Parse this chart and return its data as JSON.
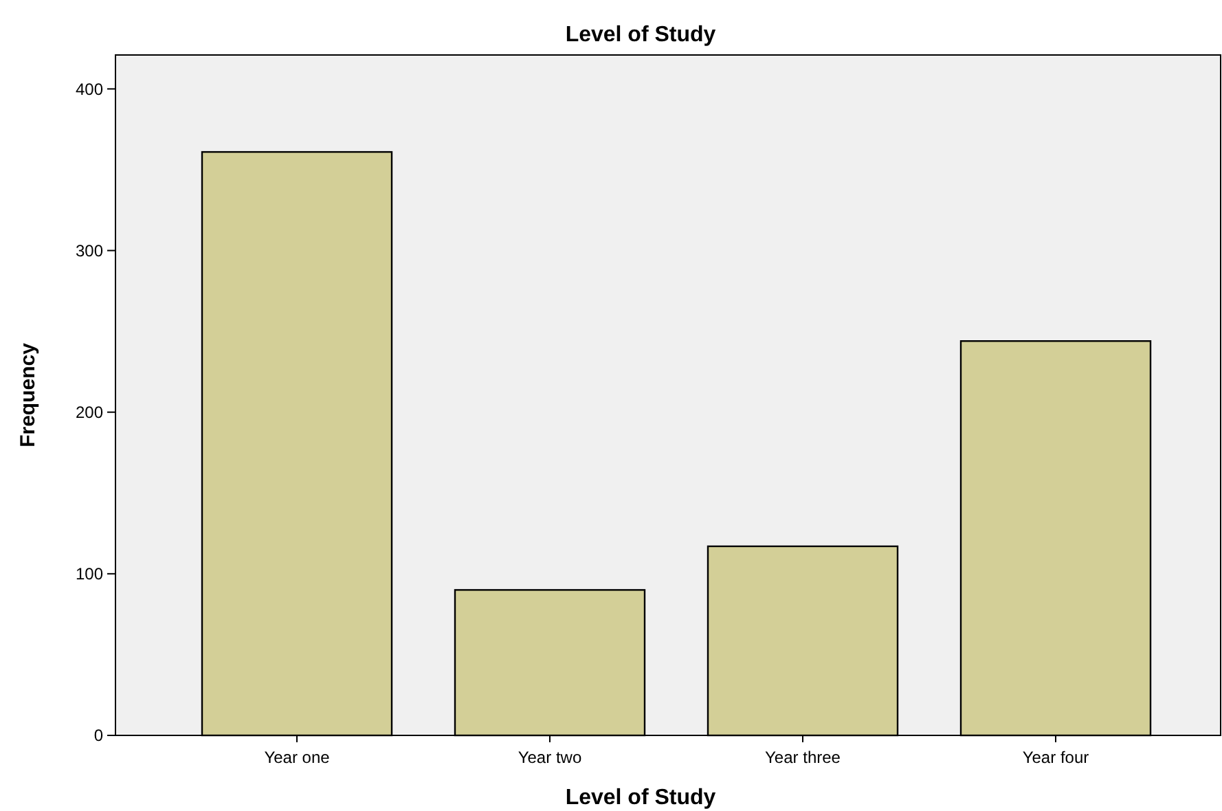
{
  "chart_data": {
    "type": "bar",
    "title": "Level of Study",
    "xlabel": "Level of Study",
    "ylabel": "Frequency",
    "categories": [
      "Year one",
      "Year two",
      "Year three",
      "Year four"
    ],
    "values": [
      361,
      90,
      117,
      244
    ],
    "color": "#d3cf97",
    "ylim": [
      0,
      421
    ],
    "yticks": [
      0,
      100,
      200,
      300,
      400
    ],
    "grid": false
  }
}
